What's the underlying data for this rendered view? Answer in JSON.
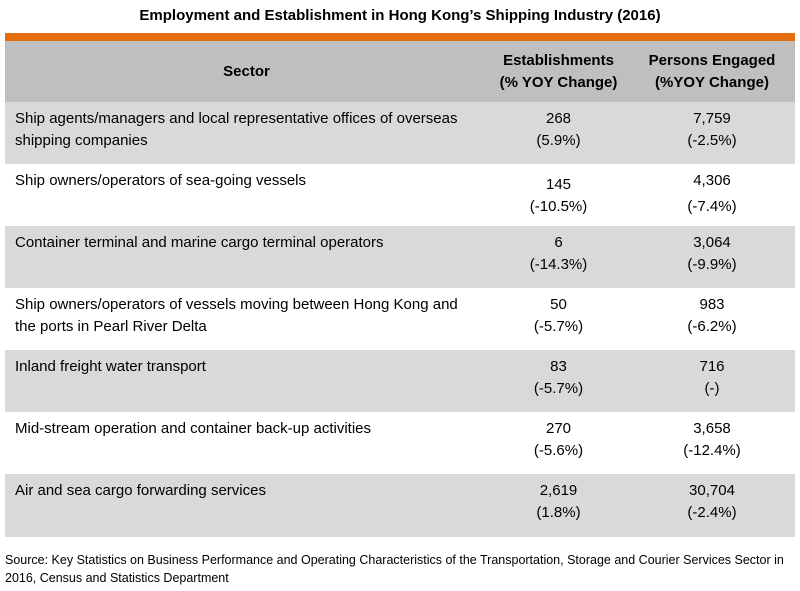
{
  "title": "Employment and Establishment in Hong Kong’s Shipping Industry (2016)",
  "columns": {
    "sector": "Sector",
    "establishments_line1": "Establishments",
    "establishments_line2": "(% YOY Change)",
    "persons_line1": "Persons Engaged",
    "persons_line2": "(%YOY Change)"
  },
  "rows": [
    {
      "sector": "Ship agents/managers and local representative offices of overseas shipping companies",
      "est": "268",
      "est_pct": "(5.9%)",
      "per": "7,759",
      "per_pct": "(-2.5%)"
    },
    {
      "sector": "Ship owners/operators of sea-going vessels",
      "est": "145",
      "est_pct": "(-10.5%)",
      "per": "4,306",
      "per_pct": "(-7.4%)"
    },
    {
      "sector": "Container terminal and marine cargo terminal operators",
      "est": "6",
      "est_pct": "(-14.3%)",
      "per": "3,064",
      "per_pct": "(-9.9%)"
    },
    {
      "sector": "Ship owners/operators of vessels moving between Hong Kong and the ports in Pearl River Delta",
      "est": "50",
      "est_pct": "(-5.7%)",
      "per": "983",
      "per_pct": "(-6.2%)"
    },
    {
      "sector": "Inland freight water transport",
      "est": "83",
      "est_pct": "(-5.7%)",
      "per": "716",
      "per_pct": "(-)"
    },
    {
      "sector": "Mid-stream operation and container back-up activities",
      "est": "270",
      "est_pct": "(-5.6%)",
      "per": "3,658",
      "per_pct": "(-12.4%)"
    },
    {
      "sector": "Air and sea cargo forwarding services",
      "est": "2,619",
      "est_pct": "(1.8%)",
      "per": "30,704",
      "per_pct": "(-2.4%)"
    }
  ],
  "source": "Source: Key Statistics on Business Performance and Operating Characteristics of the Transportation, Storage and Courier Services Sector in 2016, Census and Statistics Department",
  "colors": {
    "accent": "#e46c0a",
    "header_bg": "#bfbfbf",
    "row_shade": "#d9d9d9"
  }
}
